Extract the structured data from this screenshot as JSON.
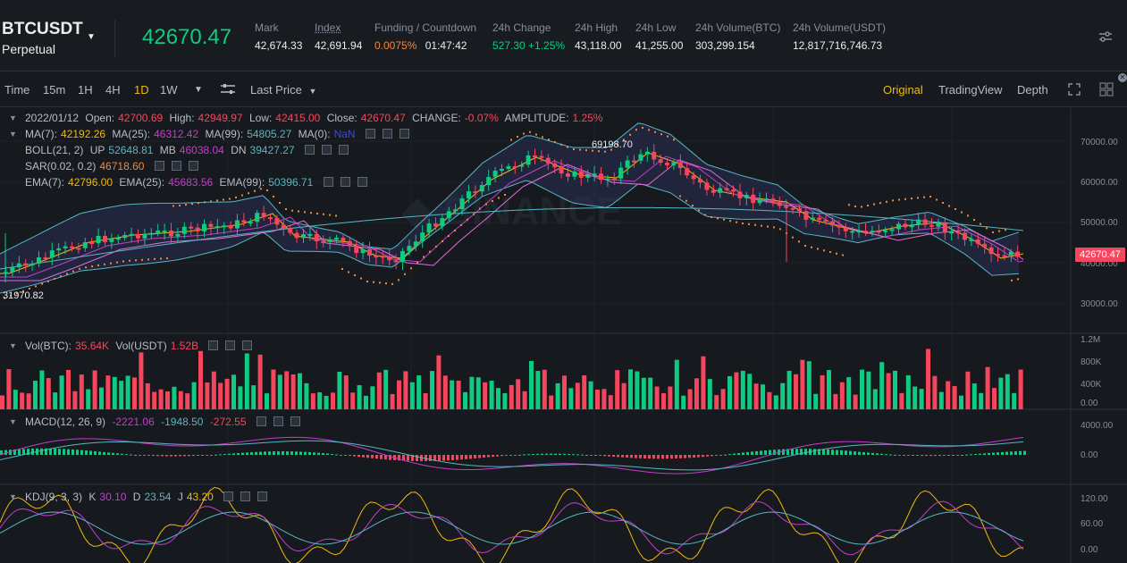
{
  "header": {
    "symbol": "BTCUSDT",
    "contract": "Perpetual",
    "last_price": "42670.47",
    "stats": [
      {
        "label": "Mark",
        "value": "42,674.33",
        "color": "#eaecef"
      },
      {
        "label": "Index",
        "value": "42,691.94",
        "color": "#eaecef"
      },
      {
        "label": "Funding / Countdown",
        "value": "0.0075%",
        "value2": "01:47:42",
        "color": "#f0883e"
      },
      {
        "label": "24h Change",
        "value": "527.30 +1.25%",
        "color": "#0ecb81"
      },
      {
        "label": "24h High",
        "value": "43,118.00",
        "color": "#eaecef"
      },
      {
        "label": "24h Low",
        "value": "41,255.00",
        "color": "#eaecef"
      },
      {
        "label": "24h Volume(BTC)",
        "value": "303,299.154",
        "color": "#eaecef"
      },
      {
        "label": "24h Volume(USDT)",
        "value": "12,817,716,746.73",
        "color": "#eaecef"
      }
    ]
  },
  "toolbar": {
    "time_label": "Time",
    "intervals": [
      "15m",
      "1H",
      "4H",
      "1D",
      "1W"
    ],
    "active_interval": "1D",
    "price_type": "Last Price",
    "views": [
      "Original",
      "TradingView",
      "Depth"
    ],
    "active_view": "Original"
  },
  "legend": {
    "ohlc": {
      "date": "2022/01/12",
      "open_label": "Open:",
      "open": "42700.69",
      "high_label": "High:",
      "high": "42949.97",
      "low_label": "Low:",
      "low": "42415.00",
      "close_label": "Close:",
      "close": "42670.47",
      "change_label": "CHANGE:",
      "change": "-0.07%",
      "amp_label": "AMPLITUDE:",
      "amp": "1.25%"
    },
    "ma": {
      "l1": "MA(7):",
      "v1": "42192.26",
      "l2": "MA(25):",
      "v2": "46312.42",
      "l3": "MA(99):",
      "v3": "54805.27",
      "l4": "MA(0):",
      "v4": "NaN"
    },
    "boll": {
      "l0": "BOLL(21, 2)",
      "l1": "UP",
      "v1": "52648.81",
      "l2": "MB",
      "v2": "46038.04",
      "l3": "DN",
      "v3": "39427.27"
    },
    "sar": {
      "l1": "SAR(0.02, 0.2)",
      "v1": "46718.60"
    },
    "ema": {
      "l1": "EMA(7):",
      "v1": "42796.00",
      "l2": "EMA(25):",
      "v2": "45683.56",
      "l3": "EMA(99):",
      "v3": "50396.71"
    },
    "vol": {
      "l1": "Vol(BTC):",
      "v1": "35.64K",
      "l2": "Vol(USDT)",
      "v2": "1.52B"
    },
    "macd": {
      "l1": "MACD(12, 26, 9)",
      "v1": "-2221.06",
      "v2": "-1948.50",
      "v3": "-272.55"
    },
    "kdj": {
      "l1": "KDJ(9, 3, 3)",
      "lk": "K",
      "vk": "30.10",
      "ld": "D",
      "vd": "23.54",
      "lj": "J",
      "vj": "43.20"
    }
  },
  "price_axis": [
    "70000.00",
    "60000.00",
    "50000.00",
    "40000.00",
    "30000.00"
  ],
  "vol_axis": [
    "1.2M",
    "800K",
    "400K",
    "0.00"
  ],
  "macd_axis": [
    "4000.00",
    "0.00"
  ],
  "kdj_axis": [
    "120.00",
    "60.00",
    "0.00"
  ],
  "high_marker": "69198.70",
  "low_marker": "31970.82",
  "current_price_tag": "42670.47",
  "colors": {
    "up": "#0ecb81",
    "down": "#f6465d",
    "accent": "#f0b90b",
    "ma7": "#f0b90b",
    "ma25": "#c13fcb",
    "ma99": "#56b6c2"
  }
}
